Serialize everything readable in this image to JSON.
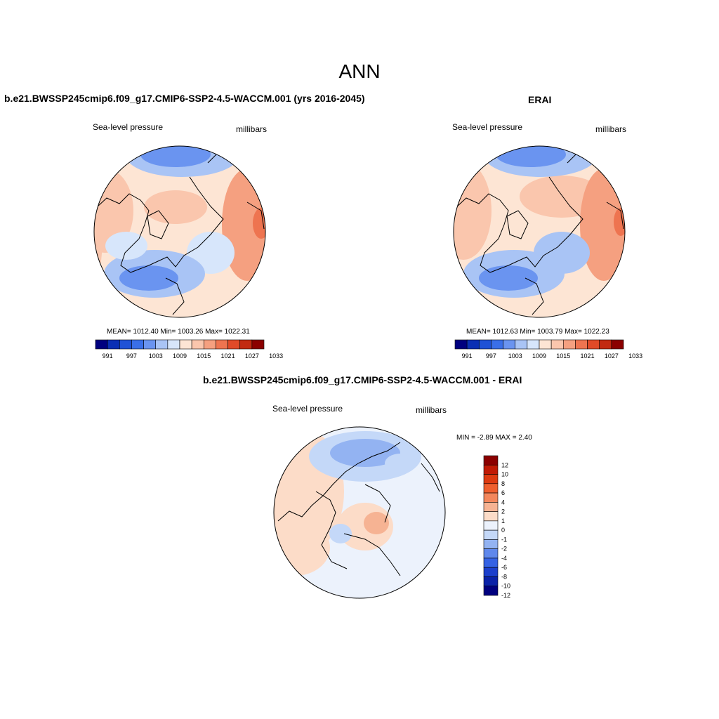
{
  "figure": {
    "title": "ANN"
  },
  "panels": [
    {
      "title": "b.e21.BWSSP245cmip6.f09_g17.CMIP6-SSP2-4.5-WACCM.001 (yrs 2016-2045)",
      "variable": "Sea-level pressure",
      "units": "millibars",
      "stats": "MEAN= 1012.40  Min= 1003.26  Max= 1022.31",
      "colorbar_labels": [
        "991",
        "997",
        "1003",
        "1009",
        "1015",
        "1021",
        "1027",
        "1033"
      ]
    },
    {
      "title": "ERAI",
      "variable": "Sea-level pressure",
      "units": "millibars",
      "stats": "MEAN= 1012.63  Min= 1003.79  Max= 1022.23",
      "colorbar_labels": [
        "991",
        "997",
        "1003",
        "1009",
        "1015",
        "1021",
        "1027",
        "1033"
      ]
    },
    {
      "title": "b.e21.BWSSP245cmip6.f09_g17.CMIP6-SSP2-4.5-WACCM.001 - ERAI",
      "variable": "Sea-level pressure",
      "units": "millibars",
      "stats": "MIN =  -2.89 MAX =   2.40",
      "colorbar_labels": [
        "12",
        "10",
        "8",
        "6",
        "4",
        "2",
        "1",
        "0",
        "-1",
        "-2",
        "-4",
        "-6",
        "-8",
        "-10",
        "-12"
      ]
    }
  ],
  "colors": {
    "abs_scale": [
      "#00007f",
      "#0a2fb4",
      "#1f52d6",
      "#3a6fe8",
      "#6a94f0",
      "#a9c4f5",
      "#d7e6fb",
      "#fde5d4",
      "#fac6ad",
      "#f5a080",
      "#ee7450",
      "#e04a28",
      "#c22a12",
      "#8b0000"
    ],
    "diff_scale": [
      "#8b0000",
      "#c01a05",
      "#dd3a10",
      "#ef5f2e",
      "#f3875c",
      "#f6b393",
      "#fcdcc8",
      "#ecf2fc",
      "#c4d8f8",
      "#93b3f2",
      "#5f88ec",
      "#3462e4",
      "#1b3fcc",
      "#0a22a8",
      "#00007f"
    ],
    "background": "#ffffff"
  }
}
